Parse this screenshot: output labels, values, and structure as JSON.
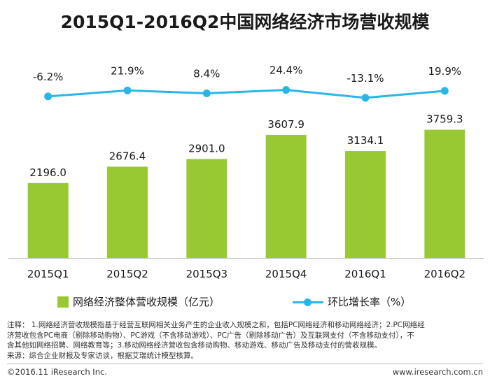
{
  "title": "2015Q1-2016Q2中国网络经济市场营收规模",
  "colors": {
    "bar": "#99c932",
    "line": "#29b6e6",
    "axis": "#bfbfbf"
  },
  "chart_data": {
    "type": "bar",
    "categories": [
      "2015Q1",
      "2015Q2",
      "2015Q3",
      "2015Q4",
      "2016Q1",
      "2016Q2"
    ],
    "series": [
      {
        "name": "网络经济整体营收规模（亿元）",
        "type": "bar",
        "values": [
          2196.0,
          2676.4,
          2901.0,
          3607.9,
          3134.1,
          3759.3
        ],
        "labels": [
          "2196.0",
          "2676.4",
          "2901.0",
          "3607.9",
          "3134.1",
          "3759.3"
        ]
      },
      {
        "name": "环比增长率（%）",
        "type": "line",
        "values": [
          -6.2,
          21.9,
          8.4,
          24.4,
          -13.1,
          19.9
        ],
        "labels": [
          "-6.2%",
          "21.9%",
          "8.4%",
          "24.4%",
          "-13.1%",
          "19.9%"
        ]
      }
    ],
    "grid": false,
    "legend": "bottom"
  },
  "legend": {
    "bar_label": "网络经济整体营收规模（亿元）",
    "line_label": "环比增长率（%）"
  },
  "footnote": {
    "line1": "注释：  1.网络经济营收规模指基于经营互联网相关业务产生的企业收入规模之和，包括PC网络经济和移动网络经济；2.PC网络经",
    "line2": "济营收包含PC电商（剔除移动购物）、PC游戏（不含移动游戏）、PC广告（剔除移动广告）及互联网支付（不含移动支付），不",
    "line3": "含其他如网络招聘、网络教育等；3.移动网络经济营收包含移动购物、移动游戏、移动广告及移动支付的营收规模。",
    "source": "来源：综合企业财报及专家访谈，根据艾瑞统计模型核算。"
  },
  "footer": {
    "copyright": "©2016.11 iResearch Inc.",
    "website": "www.iresearch.com.cn"
  }
}
